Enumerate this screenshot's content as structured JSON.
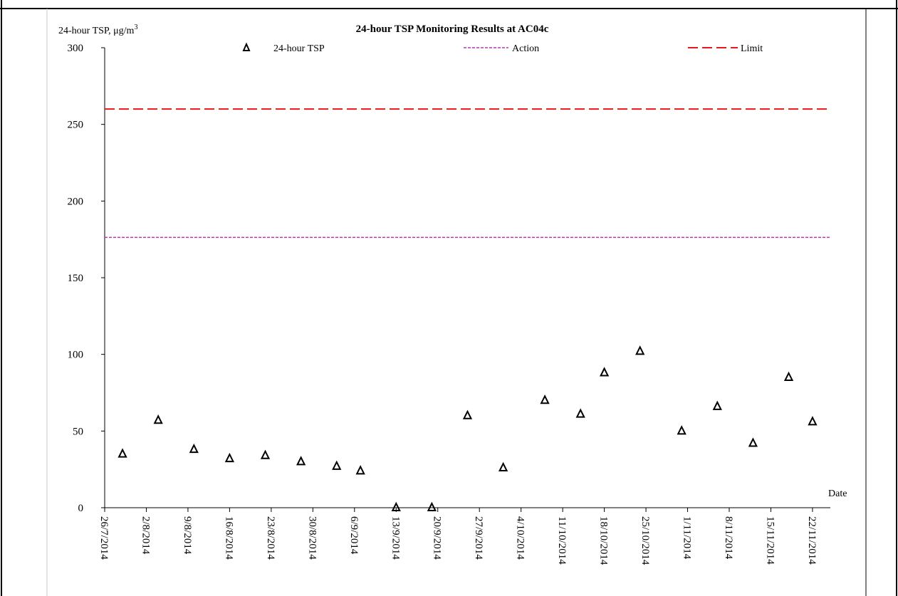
{
  "chart_data": {
    "type": "scatter",
    "title": "24-hour TSP Monitoring Results at AC04c",
    "ylabel": "24-hour TSP, μg/m",
    "ylabel_superscript": "3",
    "xlabel": "Date",
    "ylim": [
      0,
      300
    ],
    "yticks": [
      0,
      50,
      100,
      150,
      200,
      250,
      300
    ],
    "xlim": [
      "2014-07-26",
      "2014-11-25"
    ],
    "xticks": [
      {
        "date": "2014-07-26",
        "label": "26/7/2014"
      },
      {
        "date": "2014-08-02",
        "label": "2/8/2014"
      },
      {
        "date": "2014-08-09",
        "label": "9/8/2014"
      },
      {
        "date": "2014-08-16",
        "label": "16/8/2014"
      },
      {
        "date": "2014-08-23",
        "label": "23/8/2014"
      },
      {
        "date": "2014-08-30",
        "label": "30/8/2014"
      },
      {
        "date": "2014-09-06",
        "label": "6/9/2014"
      },
      {
        "date": "2014-09-13",
        "label": "13/9/2014"
      },
      {
        "date": "2014-09-20",
        "label": "20/9/2014"
      },
      {
        "date": "2014-09-27",
        "label": "27/9/2014"
      },
      {
        "date": "2014-10-04",
        "label": "4/10/2014"
      },
      {
        "date": "2014-10-11",
        "label": "11/10/2014"
      },
      {
        "date": "2014-10-18",
        "label": "18/10/2014"
      },
      {
        "date": "2014-10-25",
        "label": "25/10/2014"
      },
      {
        "date": "2014-11-01",
        "label": "1/11/2014"
      },
      {
        "date": "2014-11-08",
        "label": "8/11/2014"
      },
      {
        "date": "2014-11-15",
        "label": "15/11/2014"
      },
      {
        "date": "2014-11-22",
        "label": "22/11/2014"
      }
    ],
    "series": [
      {
        "name": "24-hour TSP",
        "marker": "triangle",
        "color": "#000000",
        "points": [
          {
            "x": "2014-07-29",
            "y": 35
          },
          {
            "x": "2014-08-04",
            "y": 57
          },
          {
            "x": "2014-08-10",
            "y": 38
          },
          {
            "x": "2014-08-16",
            "y": 32
          },
          {
            "x": "2014-08-22",
            "y": 34
          },
          {
            "x": "2014-08-28",
            "y": 30
          },
          {
            "x": "2014-09-03",
            "y": 27
          },
          {
            "x": "2014-09-07",
            "y": 24
          },
          {
            "x": "2014-09-13",
            "y": 0
          },
          {
            "x": "2014-09-19",
            "y": 0
          },
          {
            "x": "2014-09-25",
            "y": 60
          },
          {
            "x": "2014-10-01",
            "y": 26
          },
          {
            "x": "2014-10-08",
            "y": 70
          },
          {
            "x": "2014-10-14",
            "y": 61
          },
          {
            "x": "2014-10-18",
            "y": 88
          },
          {
            "x": "2014-10-24",
            "y": 102
          },
          {
            "x": "2014-10-31",
            "y": 50
          },
          {
            "x": "2014-11-06",
            "y": 66
          },
          {
            "x": "2014-11-12",
            "y": 42
          },
          {
            "x": "2014-11-18",
            "y": 85
          },
          {
            "x": "2014-11-22",
            "y": 56
          }
        ]
      },
      {
        "name": "Action",
        "type": "hline",
        "y": 176.3,
        "color": "#b03ca8",
        "dash": "short"
      },
      {
        "name": "Limit",
        "type": "hline",
        "y": 260,
        "color": "#e8161b",
        "dash": "long"
      }
    ],
    "legend": "top",
    "grid": false
  }
}
